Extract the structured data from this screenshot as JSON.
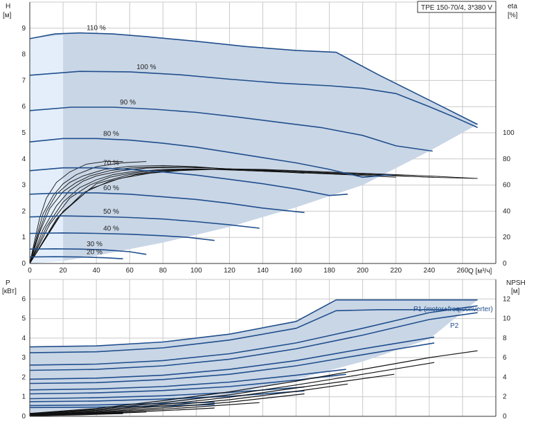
{
  "title_box": "TPE 150-70/4, 3*380 V",
  "colors": {
    "curve": "#1f4e8c",
    "band": "#c9d6e6",
    "band_light": "#e3eefa",
    "grid": "#c9c9c9",
    "eta": "#111111"
  },
  "chart_data": [
    {
      "type": "line",
      "name": "head",
      "grid": true,
      "xlabel": "Q [м³/ч]",
      "ylabel": [
        "H",
        "[м]"
      ],
      "y2label": [
        "eta",
        "[%]"
      ],
      "xlim": [
        0,
        280
      ],
      "ylim": [
        0,
        10
      ],
      "y2lim": [
        0,
        80
      ],
      "x_ticks": [
        "0",
        "20",
        "40",
        "60",
        "80",
        "100",
        "120",
        "140",
        "160",
        "180",
        "200",
        "220",
        "240",
        "260"
      ],
      "y_ticks": [
        "0",
        "1",
        "2",
        "3",
        "4",
        "5",
        "6",
        "7",
        "8",
        "9"
      ],
      "y2_ticks": [
        "0",
        "20",
        "40",
        "60",
        "80",
        "100"
      ],
      "speed_curves": [
        {
          "label": "110 %",
          "x": [
            0,
            15,
            30,
            50,
            70,
            100,
            130,
            160,
            184,
            210,
            240,
            269
          ],
          "y": [
            8.6,
            8.78,
            8.82,
            8.78,
            8.68,
            8.5,
            8.3,
            8.15,
            8.08,
            7.2,
            6.25,
            5.32
          ]
        },
        {
          "label": "100 %",
          "x": [
            0,
            30,
            60,
            90,
            120,
            150,
            180,
            200,
            220,
            240,
            255,
            269
          ],
          "y": [
            7.2,
            7.35,
            7.33,
            7.22,
            7.05,
            6.9,
            6.8,
            6.7,
            6.5,
            6.0,
            5.6,
            5.2
          ]
        },
        {
          "label": "90 %",
          "x": [
            0,
            25,
            50,
            75,
            100,
            125,
            150,
            175,
            200,
            220,
            242
          ],
          "y": [
            5.85,
            5.98,
            5.98,
            5.9,
            5.78,
            5.6,
            5.4,
            5.2,
            4.9,
            4.5,
            4.3
          ]
        },
        {
          "label": "80 %",
          "x": [
            0,
            20,
            40,
            60,
            80,
            100,
            120,
            140,
            160,
            180,
            200,
            218
          ],
          "y": [
            4.65,
            4.78,
            4.78,
            4.72,
            4.6,
            4.45,
            4.25,
            4.05,
            3.85,
            3.6,
            3.3,
            3.4
          ]
        },
        {
          "label": "70 %",
          "x": [
            0,
            20,
            40,
            60,
            80,
            100,
            120,
            140,
            160,
            180,
            191
          ],
          "y": [
            3.55,
            3.66,
            3.66,
            3.6,
            3.5,
            3.38,
            3.22,
            3.05,
            2.85,
            2.6,
            2.65
          ]
        },
        {
          "label": "60 %",
          "x": [
            0,
            20,
            40,
            60,
            80,
            100,
            120,
            140,
            165
          ],
          "y": [
            2.65,
            2.7,
            2.7,
            2.65,
            2.55,
            2.45,
            2.3,
            2.12,
            1.95
          ]
        },
        {
          "label": "50 %",
          "x": [
            0,
            20,
            40,
            60,
            80,
            100,
            120,
            138
          ],
          "y": [
            1.78,
            1.82,
            1.8,
            1.76,
            1.7,
            1.6,
            1.48,
            1.35
          ]
        },
        {
          "label": "40 %",
          "x": [
            0,
            20,
            40,
            60,
            80,
            95,
            111
          ],
          "y": [
            1.15,
            1.17,
            1.15,
            1.12,
            1.06,
            1.0,
            0.88
          ]
        },
        {
          "label": "30 %",
          "x": [
            0,
            15,
            30,
            45,
            60,
            70
          ],
          "y": [
            0.55,
            0.56,
            0.55,
            0.52,
            0.45,
            0.35
          ]
        },
        {
          "label": "20 %",
          "x": [
            0,
            15,
            30,
            45,
            56
          ],
          "y": [
            0.25,
            0.26,
            0.25,
            0.22,
            0.18
          ]
        }
      ],
      "operating_envelope": {
        "x": [
          0,
          15,
          30,
          50,
          70,
          100,
          130,
          160,
          184,
          210,
          240,
          269,
          240,
          200,
          160,
          120,
          80,
          40,
          20,
          0
        ],
        "y": [
          8.6,
          8.78,
          8.82,
          8.78,
          8.68,
          8.5,
          8.3,
          8.15,
          8.08,
          7.2,
          6.25,
          5.32,
          4.3,
          3.0,
          2.15,
          1.4,
          0.8,
          0.3,
          0.1,
          0
        ]
      },
      "efficiency_curves": [
        {
          "x": [
            0,
            20,
            40,
            60,
            80,
            100,
            120,
            140,
            160,
            180,
            200,
            220,
            240,
            269
          ],
          "y": [
            0,
            2.0,
            3.05,
            3.4,
            3.55,
            3.6,
            3.62,
            3.6,
            3.55,
            3.5,
            3.45,
            3.4,
            3.35,
            3.25
          ]
        },
        {
          "x": [
            0,
            18,
            36,
            54,
            72,
            90,
            110,
            130,
            150,
            170,
            190,
            210,
            240,
            269
          ],
          "y": [
            0,
            1.85,
            2.85,
            3.25,
            3.45,
            3.55,
            3.6,
            3.6,
            3.56,
            3.5,
            3.45,
            3.4,
            3.3,
            3.25
          ]
        },
        {
          "x": [
            0,
            16,
            32,
            48,
            64,
            80,
            100,
            120,
            140,
            160,
            180,
            200,
            220,
            243
          ],
          "y": [
            0,
            1.7,
            2.7,
            3.15,
            3.4,
            3.52,
            3.6,
            3.6,
            3.57,
            3.5,
            3.45,
            3.4,
            3.35,
            3.3
          ]
        },
        {
          "x": [
            0,
            12,
            24,
            36,
            48,
            60,
            75,
            90,
            110,
            130,
            150,
            170,
            190,
            220
          ],
          "y": [
            0,
            1.5,
            2.5,
            3.0,
            3.3,
            3.45,
            3.55,
            3.6,
            3.6,
            3.55,
            3.5,
            3.45,
            3.4,
            3.3
          ]
        },
        {
          "x": [
            0,
            10,
            20,
            30,
            40,
            50,
            60,
            80,
            100,
            120,
            140,
            160,
            190
          ],
          "y": [
            0,
            1.4,
            2.35,
            2.9,
            3.2,
            3.4,
            3.5,
            3.6,
            3.62,
            3.6,
            3.55,
            3.5,
            3.4
          ]
        },
        {
          "x": [
            0,
            8,
            16,
            24,
            32,
            40,
            55,
            70,
            90,
            110,
            140,
            165
          ],
          "y": [
            0,
            1.3,
            2.2,
            2.8,
            3.15,
            3.35,
            3.55,
            3.65,
            3.68,
            3.65,
            3.55,
            3.45
          ]
        },
        {
          "x": [
            0,
            6,
            12,
            20,
            28,
            36,
            48,
            60,
            80,
            100,
            120,
            138
          ],
          "y": [
            0,
            1.2,
            2.1,
            2.75,
            3.1,
            3.35,
            3.55,
            3.65,
            3.7,
            3.68,
            3.62,
            3.55
          ]
        },
        {
          "x": [
            0,
            5,
            10,
            16,
            24,
            32,
            45,
            60,
            80,
            100,
            111
          ],
          "y": [
            0,
            1.1,
            2.0,
            2.65,
            3.1,
            3.35,
            3.6,
            3.72,
            3.75,
            3.7,
            3.65
          ]
        },
        {
          "x": [
            0,
            4,
            8,
            14,
            20,
            28,
            40,
            55,
            70
          ],
          "y": [
            0,
            1.0,
            1.9,
            2.6,
            3.05,
            3.4,
            3.7,
            3.85,
            3.9
          ]
        },
        {
          "x": [
            0,
            3,
            6,
            10,
            16,
            24,
            34,
            45,
            56
          ],
          "y": [
            0,
            0.9,
            1.75,
            2.5,
            3.1,
            3.5,
            3.8,
            3.9,
            3.9
          ]
        }
      ]
    },
    {
      "type": "line",
      "name": "power",
      "grid": true,
      "ylabel": [
        "P",
        "[кВт]"
      ],
      "y2label": [
        "NPSH",
        "[м]"
      ],
      "xlim": [
        0,
        280
      ],
      "ylim": [
        0,
        7
      ],
      "y2lim": [
        0,
        14
      ],
      "y_ticks": [
        "0",
        "1",
        "2",
        "3",
        "4",
        "5",
        "6"
      ],
      "y2_ticks": [
        "0",
        "2",
        "4",
        "6",
        "8",
        "10",
        "12"
      ],
      "legend_labels": {
        "p1": "P1 (motor+freq.converter)",
        "p2": "P2"
      },
      "power_envelope": {
        "x": [
          0,
          20,
          40,
          60,
          80,
          100,
          120,
          140,
          160,
          184,
          210,
          240,
          269,
          240,
          200,
          160,
          120,
          80,
          40,
          0
        ],
        "y": [
          3.55,
          3.56,
          3.6,
          3.68,
          3.8,
          3.98,
          4.2,
          4.5,
          4.85,
          5.95,
          5.95,
          5.95,
          5.95,
          3.95,
          2.8,
          1.9,
          1.1,
          0.6,
          0.3,
          0.1
        ]
      },
      "p1_curves": [
        {
          "x": [
            0,
            40,
            80,
            120,
            160,
            184,
            210,
            240,
            269
          ],
          "y": [
            3.55,
            3.6,
            3.8,
            4.2,
            4.85,
            5.95,
            5.95,
            5.95,
            5.95
          ]
        },
        {
          "x": [
            0,
            40,
            80,
            120,
            160,
            200,
            240,
            269
          ],
          "y": [
            2.62,
            2.67,
            2.85,
            3.2,
            3.75,
            4.5,
            5.3,
            5.65
          ]
        },
        {
          "x": [
            0,
            40,
            80,
            120,
            160,
            200,
            243
          ],
          "y": [
            1.9,
            1.95,
            2.1,
            2.4,
            2.85,
            3.45,
            4.05
          ]
        },
        {
          "x": [
            0,
            40,
            80,
            120,
            160,
            190
          ],
          "y": [
            1.35,
            1.4,
            1.52,
            1.75,
            2.1,
            2.4
          ]
        },
        {
          "x": [
            0,
            40,
            80,
            120,
            165
          ],
          "y": [
            0.9,
            0.95,
            1.05,
            1.22,
            1.5
          ]
        },
        {
          "x": [
            0,
            40,
            80,
            111
          ],
          "y": [
            0.55,
            0.58,
            0.65,
            0.72
          ]
        },
        {
          "x": [
            0,
            30,
            56
          ],
          "y": [
            0.15,
            0.17,
            0.2
          ]
        }
      ],
      "p2_curves": [
        {
          "x": [
            0,
            40,
            80,
            120,
            160,
            184,
            210,
            240,
            269
          ],
          "y": [
            3.25,
            3.3,
            3.5,
            3.9,
            4.5,
            5.4,
            5.45,
            5.45,
            5.45
          ]
        },
        {
          "x": [
            0,
            40,
            80,
            120,
            160,
            200,
            240,
            269
          ],
          "y": [
            2.35,
            2.4,
            2.58,
            2.92,
            3.45,
            4.15,
            4.95,
            5.3
          ]
        },
        {
          "x": [
            0,
            40,
            80,
            120,
            160,
            200,
            243
          ],
          "y": [
            1.68,
            1.72,
            1.88,
            2.15,
            2.58,
            3.15,
            3.75
          ]
        },
        {
          "x": [
            0,
            40,
            80,
            120,
            160,
            190
          ],
          "y": [
            1.15,
            1.2,
            1.32,
            1.52,
            1.85,
            2.15
          ]
        },
        {
          "x": [
            0,
            40,
            80,
            120,
            165
          ],
          "y": [
            0.75,
            0.78,
            0.88,
            1.02,
            1.3
          ]
        },
        {
          "x": [
            0,
            40,
            80,
            111
          ],
          "y": [
            0.45,
            0.47,
            0.52,
            0.6
          ]
        },
        {
          "x": [
            0,
            30,
            56
          ],
          "y": [
            0.12,
            0.13,
            0.15
          ]
        }
      ],
      "npsh_curves": [
        {
          "x": [
            0,
            40,
            80,
            120,
            160,
            200,
            240,
            269
          ],
          "y": [
            0.3,
            0.8,
            1.6,
            2.5,
            3.6,
            4.8,
            6.0,
            6.7
          ]
        },
        {
          "x": [
            0,
            40,
            80,
            120,
            160,
            200,
            243
          ],
          "y": [
            0.25,
            0.7,
            1.4,
            2.2,
            3.2,
            4.3,
            5.5
          ]
        },
        {
          "x": [
            0,
            40,
            80,
            120,
            160,
            219
          ],
          "y": [
            0.2,
            0.6,
            1.2,
            1.95,
            2.9,
            4.3
          ]
        },
        {
          "x": [
            0,
            40,
            80,
            120,
            160,
            191
          ],
          "y": [
            0.15,
            0.5,
            1.05,
            1.7,
            2.55,
            3.3
          ]
        },
        {
          "x": [
            0,
            40,
            80,
            120,
            165
          ],
          "y": [
            0.12,
            0.42,
            0.88,
            1.45,
            2.3
          ]
        },
        {
          "x": [
            0,
            40,
            80,
            138
          ],
          "y": [
            0.1,
            0.35,
            0.72,
            1.4
          ]
        },
        {
          "x": [
            0,
            40,
            80,
            111
          ],
          "y": [
            0.08,
            0.28,
            0.58,
            0.85
          ]
        },
        {
          "x": [
            0,
            35,
            70
          ],
          "y": [
            0.06,
            0.2,
            0.45
          ]
        },
        {
          "x": [
            0,
            30,
            56
          ],
          "y": [
            0.05,
            0.15,
            0.28
          ]
        }
      ]
    }
  ]
}
